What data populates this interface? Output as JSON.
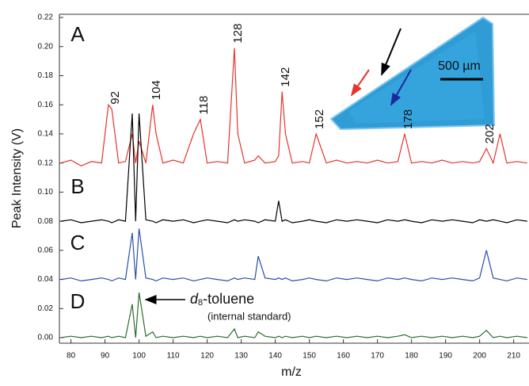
{
  "chart_data": {
    "type": "line",
    "x_label": "m/z",
    "y_label": "Peak Intensity (V)",
    "x": [
      77,
      80,
      83,
      86,
      89,
      91,
      92,
      94,
      96,
      98,
      99,
      100,
      102,
      104,
      105,
      107,
      110,
      113,
      116,
      118,
      120,
      123,
      126,
      128,
      129,
      131,
      134,
      135,
      137,
      140,
      141,
      142,
      143,
      145,
      148,
      150,
      152,
      155,
      158,
      161,
      164,
      167,
      170,
      173,
      176,
      178,
      180,
      183,
      186,
      189,
      192,
      195,
      198,
      200,
      202,
      204,
      206,
      208,
      211,
      214
    ],
    "series": [
      {
        "name": "A",
        "color": "#e8332b",
        "values": [
          0.12,
          0.122,
          0.118,
          0.121,
          0.12,
          0.16,
          0.157,
          0.12,
          0.121,
          0.14,
          0.12,
          0.135,
          0.12,
          0.16,
          0.14,
          0.12,
          0.122,
          0.12,
          0.14,
          0.15,
          0.12,
          0.121,
          0.12,
          0.199,
          0.14,
          0.12,
          0.122,
          0.125,
          0.12,
          0.121,
          0.125,
          0.169,
          0.14,
          0.12,
          0.121,
          0.12,
          0.14,
          0.12,
          0.122,
          0.12,
          0.121,
          0.12,
          0.122,
          0.12,
          0.121,
          0.14,
          0.12,
          0.121,
          0.12,
          0.122,
          0.12,
          0.121,
          0.12,
          0.121,
          0.13,
          0.12,
          0.14,
          0.12,
          0.121,
          0.12
        ]
      },
      {
        "name": "B",
        "color": "#000000",
        "values": [
          0.08,
          0.081,
          0.079,
          0.08,
          0.081,
          0.08,
          0.079,
          0.081,
          0.08,
          0.154,
          0.08,
          0.154,
          0.081,
          0.08,
          0.079,
          0.081,
          0.08,
          0.081,
          0.079,
          0.08,
          0.081,
          0.08,
          0.079,
          0.081,
          0.08,
          0.081,
          0.08,
          0.079,
          0.081,
          0.08,
          0.094,
          0.08,
          0.081,
          0.079,
          0.08,
          0.081,
          0.08,
          0.079,
          0.081,
          0.08,
          0.081,
          0.08,
          0.079,
          0.081,
          0.08,
          0.081,
          0.08,
          0.079,
          0.081,
          0.08,
          0.081,
          0.08,
          0.079,
          0.081,
          0.08,
          0.081,
          0.08,
          0.079,
          0.081,
          0.08
        ]
      },
      {
        "name": "C",
        "color": "#2a4fa8",
        "values": [
          0.04,
          0.041,
          0.039,
          0.04,
          0.041,
          0.04,
          0.039,
          0.041,
          0.04,
          0.072,
          0.04,
          0.075,
          0.041,
          0.04,
          0.039,
          0.041,
          0.04,
          0.041,
          0.039,
          0.04,
          0.041,
          0.04,
          0.039,
          0.041,
          0.04,
          0.041,
          0.04,
          0.056,
          0.041,
          0.04,
          0.041,
          0.04,
          0.041,
          0.039,
          0.04,
          0.041,
          0.04,
          0.039,
          0.041,
          0.04,
          0.041,
          0.04,
          0.039,
          0.041,
          0.04,
          0.041,
          0.04,
          0.039,
          0.041,
          0.04,
          0.041,
          0.04,
          0.039,
          0.041,
          0.06,
          0.041,
          0.04,
          0.039,
          0.041,
          0.04
        ]
      },
      {
        "name": "D",
        "color": "#2e6b2e",
        "values": [
          0.0,
          0.001,
          0.0,
          0.001,
          0.0,
          0.001,
          0.0,
          0.001,
          0.0,
          0.023,
          0.0,
          0.031,
          0.001,
          0.004,
          0.0,
          0.001,
          0.0,
          0.001,
          0.0,
          0.001,
          0.0,
          0.001,
          0.0,
          0.006,
          0.0,
          0.001,
          0.0,
          0.004,
          0.001,
          0.0,
          0.001,
          0.0,
          0.001,
          0.0,
          0.001,
          0.0,
          0.001,
          0.0,
          0.001,
          0.0,
          0.001,
          0.0,
          0.001,
          0.0,
          0.001,
          0.002,
          0.0,
          0.001,
          0.0,
          0.001,
          0.0,
          0.001,
          0.0,
          0.001,
          0.005,
          0.0,
          0.001,
          0.0,
          0.001,
          0.0
        ]
      }
    ],
    "peak_labels": [
      92,
      104,
      118,
      128,
      142,
      152,
      178,
      202
    ],
    "annotation": {
      "italic": "d",
      "subscript": "8",
      "text": "-toluene",
      "note": "(internal standard)"
    },
    "inset_scale_label": "500 µm",
    "xlim": [
      76.6,
      214.5
    ],
    "xticks": [
      80,
      90,
      100,
      110,
      120,
      130,
      140,
      150,
      160,
      170,
      180,
      190,
      200,
      210
    ],
    "ylim": [
      -0.0038,
      0.2222
    ],
    "yticks": [
      {
        "value": 0,
        "label": "0.00"
      },
      {
        "value": 0.02,
        "label": "0.02"
      },
      {
        "value": 0.04,
        "label": "0.04"
      },
      {
        "value": 0.06,
        "label": "0.06"
      },
      {
        "value": 0.08,
        "label": "0.08"
      },
      {
        "value": 0.1,
        "label": "0.10"
      },
      {
        "value": 0.12,
        "label": "0.12"
      },
      {
        "value": 0.14,
        "label": "0.14"
      },
      {
        "value": 0.16,
        "label": "0.16"
      },
      {
        "value": 0.18,
        "label": "0.18"
      },
      {
        "value": 0.2,
        "label": "0.20"
      },
      {
        "value": 0.22,
        "label": "0.22"
      }
    ],
    "grid": false
  }
}
